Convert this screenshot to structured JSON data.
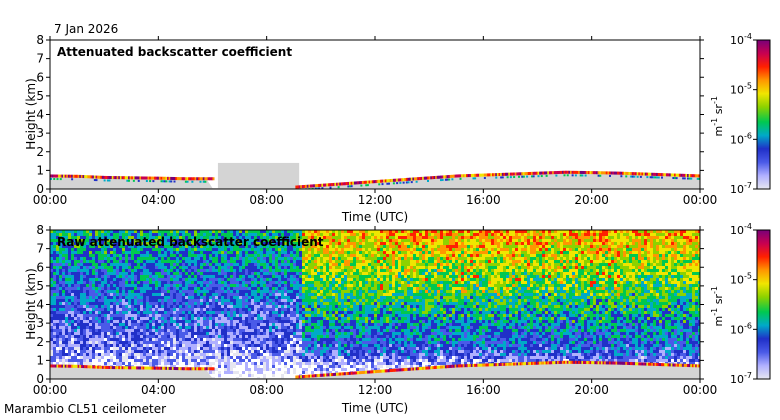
{
  "header": {
    "date": "7 Jan 2026"
  },
  "footer": {
    "instrument": "Marambio CL51 ceilometer"
  },
  "colors": {
    "background_grey": "#d4d4d4",
    "frame": "#000000",
    "colormap": [
      "#e6e6f0",
      "#b0b0ff",
      "#4a5ae8",
      "#2030c8",
      "#00aac8",
      "#00c850",
      "#8cd200",
      "#f0e600",
      "#ff9600",
      "#ff2000",
      "#c80050",
      "#780078"
    ]
  },
  "chart_data": [
    {
      "type": "heatmap",
      "title": "Attenuated backscatter coefficient",
      "xlabel": "Time (UTC)",
      "ylabel": "Height (km)",
      "xlim": [
        "00:00",
        "24:00"
      ],
      "ylim": [
        0,
        8
      ],
      "xticks": [
        "00:00",
        "04:00",
        "08:00",
        "12:00",
        "16:00",
        "20:00",
        "00:00"
      ],
      "yticks": [
        "0",
        "1",
        "2",
        "3",
        "4",
        "5",
        "6",
        "7",
        "8"
      ],
      "colorbar": {
        "label": "m-1 sr-1",
        "label_base": "m",
        "label_exp1": "-1",
        "label_unit2": "sr",
        "label_exp2": "-1",
        "scale": "log",
        "range": [
          1e-07,
          0.0001
        ],
        "tick_base": "10",
        "ticks": [
          "-4",
          "-5",
          "-6",
          "-7"
        ]
      },
      "boundary_layer_km": {
        "time_h": [
          0,
          1,
          2,
          3,
          4,
          5,
          6,
          7,
          8,
          9,
          10,
          11,
          12,
          13,
          14,
          15,
          16,
          17,
          18,
          19,
          20,
          21,
          22,
          23,
          24
        ],
        "height": [
          0.7,
          0.68,
          0.62,
          0.6,
          0.58,
          0.55,
          0.55,
          null,
          null,
          0.1,
          0.2,
          0.3,
          0.4,
          0.5,
          0.6,
          0.7,
          0.75,
          0.8,
          0.85,
          0.9,
          0.88,
          0.85,
          0.8,
          0.75,
          0.7
        ]
      },
      "grey_region": {
        "start_h": 6.2,
        "end_h": 9.2,
        "top_km": 1.4
      },
      "grid": false,
      "legend": "right"
    },
    {
      "type": "heatmap",
      "title": "Raw attenuated backscatter coefficient",
      "xlabel": "Time (UTC)",
      "ylabel": "Height (km)",
      "xlim": [
        "00:00",
        "24:00"
      ],
      "ylim": [
        0,
        8
      ],
      "xticks": [
        "00:00",
        "04:00",
        "08:00",
        "12:00",
        "16:00",
        "20:00",
        "00:00"
      ],
      "yticks": [
        "0",
        "1",
        "2",
        "3",
        "4",
        "5",
        "6",
        "7",
        "8"
      ],
      "colorbar": {
        "label": "m-1 sr-1",
        "label_base": "m",
        "label_exp1": "-1",
        "label_unit2": "sr",
        "label_exp2": "-1",
        "scale": "log",
        "range": [
          1e-07,
          0.0001
        ],
        "tick_base": "10",
        "ticks": [
          "-4",
          "-5",
          "-6",
          "-7"
        ]
      },
      "noise_step_h": 9.2,
      "grid": false,
      "legend": "right"
    }
  ]
}
